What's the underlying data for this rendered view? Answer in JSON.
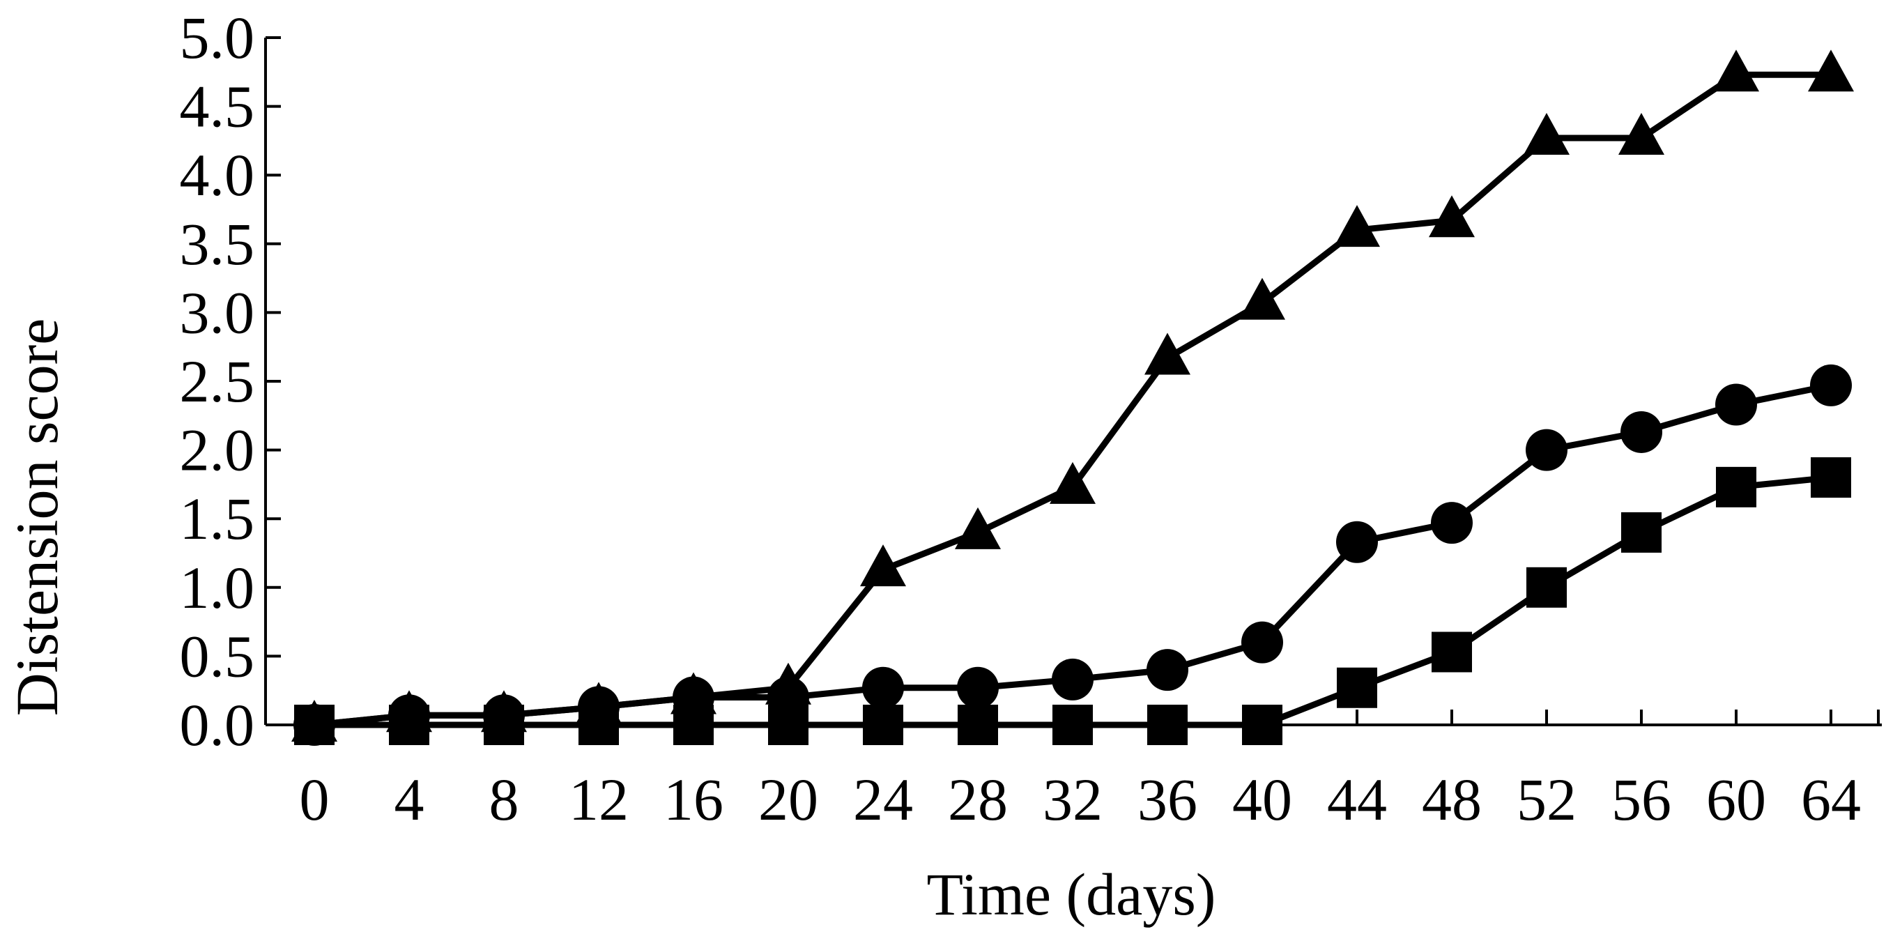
{
  "chart_data": {
    "type": "line",
    "title": "",
    "xlabel": "Time (days)",
    "ylabel": "Distension score",
    "x": [
      0,
      4,
      8,
      12,
      16,
      20,
      24,
      28,
      32,
      36,
      40,
      44,
      48,
      52,
      56,
      60,
      64
    ],
    "x_ticks": [
      "0",
      "4",
      "8",
      "12",
      "16",
      "20",
      "24",
      "28",
      "32",
      "36",
      "40",
      "44",
      "48",
      "52",
      "56",
      "60",
      "64"
    ],
    "y_ticks": [
      "0.0",
      "0.5",
      "1.0",
      "1.5",
      "2.0",
      "2.5",
      "3.0",
      "3.5",
      "4.0",
      "4.5",
      "5.0"
    ],
    "xlim": [
      0,
      66
    ],
    "ylim": [
      0,
      5.0
    ],
    "grid": false,
    "legend": "none",
    "series": [
      {
        "marker": "triangle",
        "color": "#000000",
        "values": [
          0,
          0.07,
          0.07,
          0.13,
          0.2,
          0.27,
          1.13,
          1.4,
          1.73,
          2.67,
          3.07,
          3.6,
          3.67,
          4.27,
          4.27,
          4.73,
          4.73
        ]
      },
      {
        "marker": "circle",
        "color": "#000000",
        "values": [
          0,
          0.07,
          0.07,
          0.13,
          0.2,
          0.2,
          0.27,
          0.27,
          0.33,
          0.4,
          0.6,
          1.33,
          1.47,
          2.0,
          2.13,
          2.33,
          2.47
        ]
      },
      {
        "marker": "square",
        "color": "#000000",
        "values": [
          0,
          0,
          0,
          0,
          0,
          0,
          0,
          0,
          0,
          0,
          0,
          0.27,
          0.53,
          1.0,
          1.4,
          1.73,
          1.8
        ]
      }
    ]
  }
}
